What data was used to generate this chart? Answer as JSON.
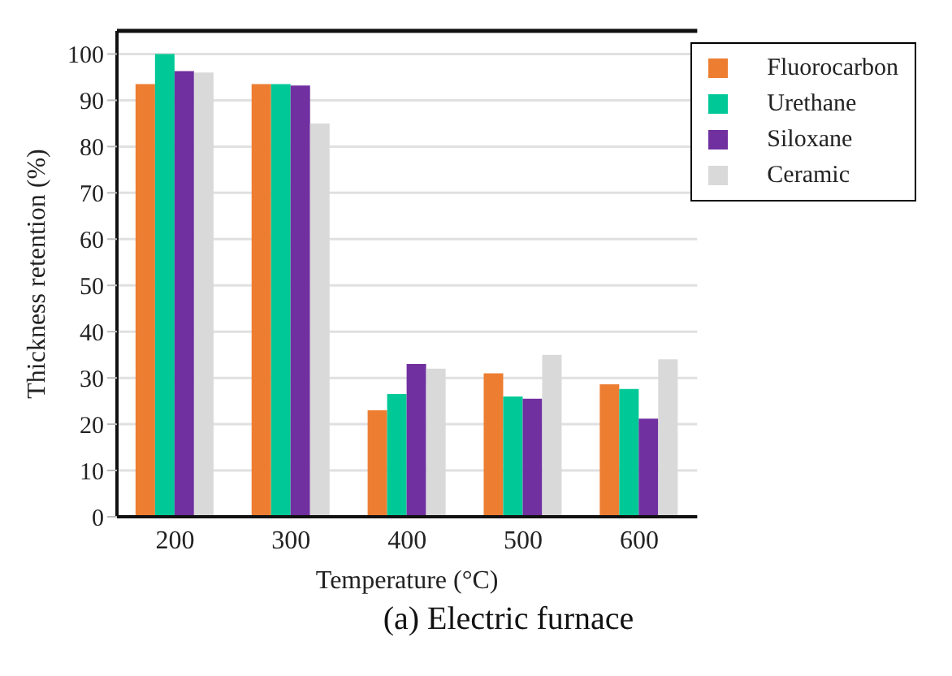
{
  "chart_data": {
    "type": "bar",
    "categories": [
      "200",
      "300",
      "400",
      "500",
      "600"
    ],
    "series": [
      {
        "name": "Fluorocarbon",
        "color": "#ed7d31",
        "values": [
          93.5,
          93.5,
          23,
          31,
          28.6
        ]
      },
      {
        "name": "Urethane",
        "color": "#00c896",
        "values": [
          100,
          93.5,
          26.5,
          26,
          27.6
        ]
      },
      {
        "name": "Siloxane",
        "color": "#7030a0",
        "values": [
          96.3,
          93.2,
          33,
          25.5,
          21.2
        ]
      },
      {
        "name": "Ceramic",
        "color": "#d9d9d9",
        "values": [
          96,
          85,
          32,
          35,
          34
        ]
      }
    ],
    "xlabel": "Temperature (°C)",
    "ylabel": "Thickness retention (%)",
    "ylim": [
      0,
      105
    ],
    "yticks": [
      0,
      10,
      20,
      30,
      40,
      50,
      60,
      70,
      80,
      90,
      100
    ],
    "grid": "y",
    "legend": "top right",
    "annotations": [
      "(a) Electric furnace"
    ]
  }
}
